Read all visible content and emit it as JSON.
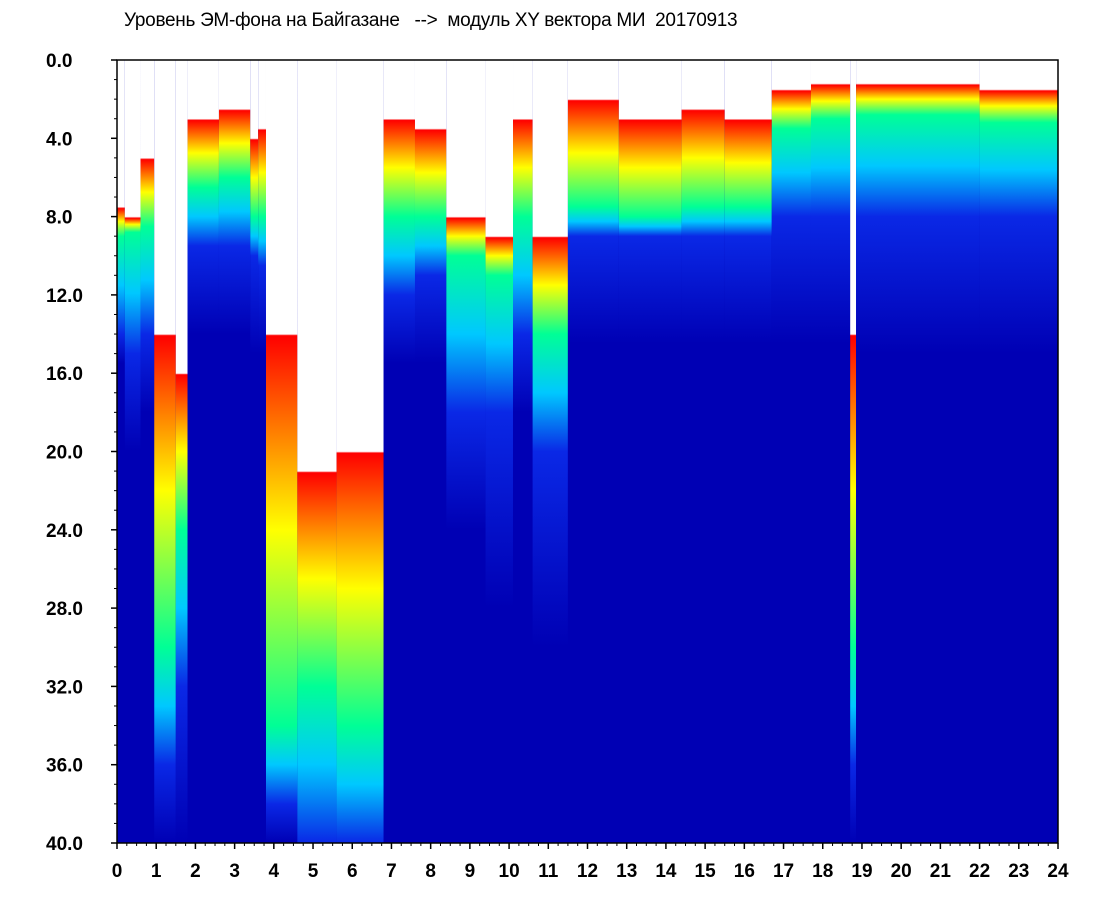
{
  "chart_data": {
    "type": "heatmap",
    "title": "Уровень ЭМ-фона на Байгазане   -->  модуль XY вектора МИ  20170913",
    "xlabel": "",
    "ylabel": "",
    "xlim": [
      0,
      24
    ],
    "ylim": [
      0,
      40
    ],
    "y_inverted": true,
    "grid": false,
    "x_tick_labels": [
      "0",
      "1",
      "2",
      "3",
      "4",
      "5",
      "6",
      "7",
      "8",
      "9",
      "10",
      "11",
      "12",
      "13",
      "14",
      "15",
      "16",
      "17",
      "18",
      "19",
      "20",
      "21",
      "22",
      "23",
      "24"
    ],
    "y_tick_labels": [
      "0.0",
      "4.0",
      "8.0",
      "12.0",
      "16.0",
      "20.0",
      "24.0",
      "28.0",
      "32.0",
      "36.0",
      "40.0"
    ],
    "colormap": [
      "#0000b4",
      "#0a28e6",
      "#00c8ff",
      "#00ff96",
      "#ffff00",
      "#ff0000",
      "#ffffff"
    ],
    "colormap_note": "white = highest level, red/yellow = high, green/cyan = medium, blue = low",
    "segments": [
      {
        "x": [
          0.0,
          0.2
        ],
        "white_to": 7.5,
        "red_to": 9.0,
        "green_to": 14.0,
        "cyan_to": 15.5
      },
      {
        "x": [
          0.2,
          0.6
        ],
        "white_to": 8.0,
        "red_to": 8.8,
        "green_to": 15.0,
        "cyan_to": 20.0
      },
      {
        "x": [
          0.6,
          0.95
        ],
        "white_to": 5.0,
        "red_to": 8.5,
        "green_to": 14.0,
        "cyan_to": 18.0
      },
      {
        "x": [
          0.95,
          1.5
        ],
        "white_to": 14.0,
        "red_to": 30.0,
        "green_to": 36.0,
        "cyan_to": 40.0
      },
      {
        "x": [
          1.5,
          1.8
        ],
        "white_to": 16.0,
        "red_to": 24.0,
        "green_to": 32.0,
        "cyan_to": 40.0
      },
      {
        "x": [
          1.8,
          2.6
        ],
        "white_to": 3.0,
        "red_to": 6.5,
        "green_to": 9.5,
        "cyan_to": 14.0
      },
      {
        "x": [
          2.6,
          3.4
        ],
        "white_to": 2.5,
        "red_to": 6.0,
        "green_to": 9.5,
        "cyan_to": 14.0
      },
      {
        "x": [
          3.4,
          3.6
        ],
        "white_to": 4.0,
        "red_to": 8.0,
        "green_to": 10.0,
        "cyan_to": 15.0
      },
      {
        "x": [
          3.6,
          3.8
        ],
        "white_to": 3.5,
        "red_to": 8.0,
        "green_to": 10.5,
        "cyan_to": 15.0
      },
      {
        "x": [
          3.8,
          4.6
        ],
        "white_to": 14.0,
        "red_to": 34.0,
        "green_to": 38.0,
        "cyan_to": 40.0
      },
      {
        "x": [
          4.6,
          5.6
        ],
        "white_to": 21.0,
        "red_to": 32.0,
        "green_to": 40.0,
        "cyan_to": 40.0
      },
      {
        "x": [
          5.6,
          6.8
        ],
        "white_to": 20.0,
        "red_to": 34.0,
        "green_to": 40.0,
        "cyan_to": 40.0
      },
      {
        "x": [
          6.8,
          7.6
        ],
        "white_to": 3.0,
        "red_to": 8.0,
        "green_to": 12.0,
        "cyan_to": 15.5
      },
      {
        "x": [
          7.6,
          8.4
        ],
        "white_to": 3.5,
        "red_to": 8.0,
        "green_to": 11.0,
        "cyan_to": 15.5
      },
      {
        "x": [
          8.4,
          9.4
        ],
        "white_to": 8.0,
        "red_to": 10.0,
        "green_to": 18.0,
        "cyan_to": 24.0
      },
      {
        "x": [
          9.4,
          10.1
        ],
        "white_to": 9.0,
        "red_to": 11.0,
        "green_to": 18.0,
        "cyan_to": 28.0
      },
      {
        "x": [
          10.1,
          10.6
        ],
        "white_to": 3.0,
        "red_to": 8.0,
        "green_to": 14.0,
        "cyan_to": 18.0
      },
      {
        "x": [
          10.6,
          11.5
        ],
        "white_to": 9.0,
        "red_to": 14.0,
        "green_to": 20.0,
        "cyan_to": 30.0
      },
      {
        "x": [
          11.5,
          12.8
        ],
        "white_to": 2.0,
        "red_to": 7.5,
        "green_to": 9.0,
        "cyan_to": 14.5
      },
      {
        "x": [
          12.8,
          14.4
        ],
        "white_to": 3.0,
        "red_to": 8.0,
        "green_to": 9.0,
        "cyan_to": 14.5
      },
      {
        "x": [
          14.4,
          15.5
        ],
        "white_to": 2.5,
        "red_to": 7.5,
        "green_to": 9.0,
        "cyan_to": 14.5
      },
      {
        "x": [
          15.5,
          16.7
        ],
        "white_to": 3.0,
        "red_to": 7.5,
        "green_to": 9.0,
        "cyan_to": 14.5
      },
      {
        "x": [
          16.7,
          17.7
        ],
        "white_to": 1.5,
        "red_to": 3.5,
        "green_to": 8.0,
        "cyan_to": 14.5
      },
      {
        "x": [
          17.7,
          18.7
        ],
        "white_to": 1.2,
        "red_to": 3.0,
        "green_to": 8.0,
        "cyan_to": 14.5
      },
      {
        "x": [
          18.7,
          18.85
        ],
        "white_to": 14.0,
        "red_to": 30.0,
        "green_to": 36.0,
        "cyan_to": 40.0
      },
      {
        "x": [
          18.85,
          22.0
        ],
        "white_to": 1.2,
        "red_to": 2.8,
        "green_to": 8.0,
        "cyan_to": 15.0
      },
      {
        "x": [
          22.0,
          24.0
        ],
        "white_to": 1.5,
        "red_to": 3.2,
        "green_to": 8.0,
        "cyan_to": 15.0
      }
    ]
  }
}
